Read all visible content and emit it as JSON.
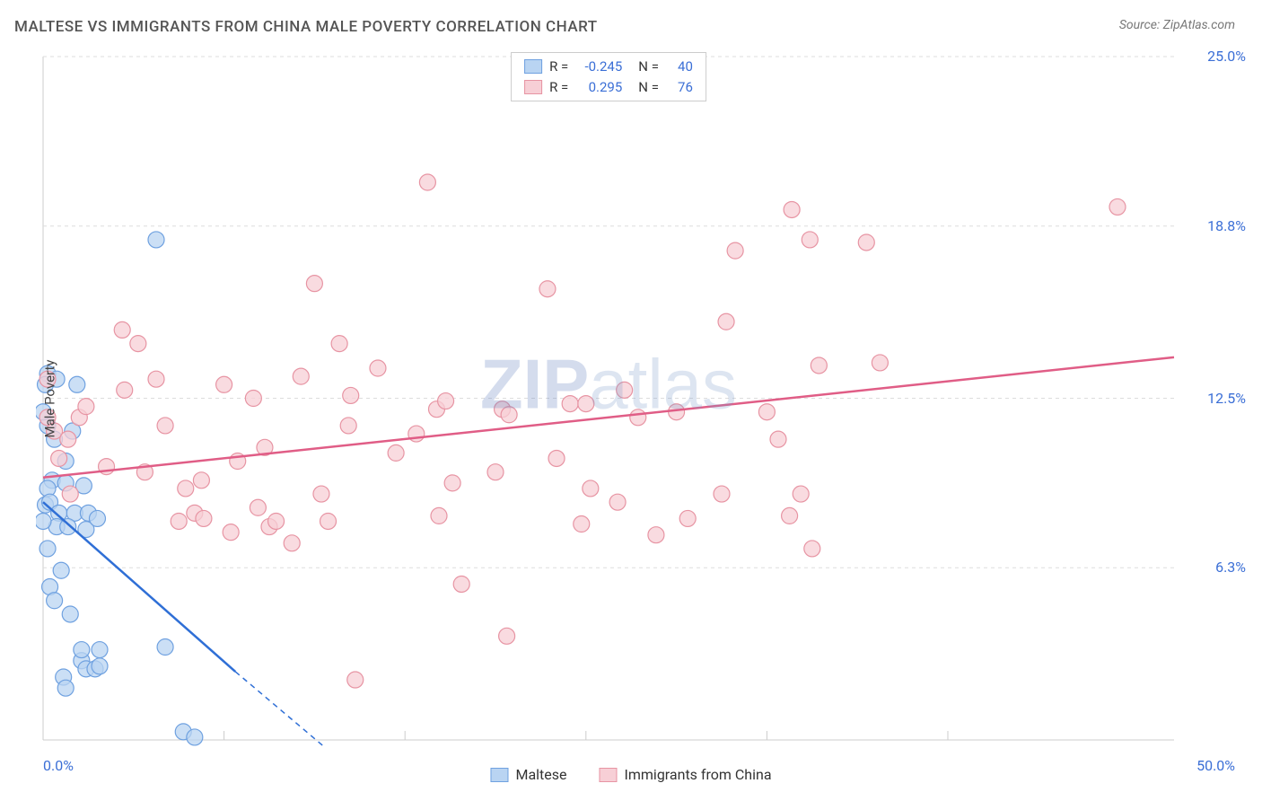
{
  "title": "MALTESE VS IMMIGRANTS FROM CHINA MALE POVERTY CORRELATION CHART",
  "source_prefix": "Source: ",
  "source_name": "ZipAtlas.com",
  "ylabel": "Male Poverty",
  "watermark": {
    "bold": "ZIP",
    "rest": "atlas"
  },
  "chart": {
    "type": "scatter",
    "xlim": [
      0,
      50
    ],
    "ylim": [
      0,
      25
    ],
    "x_ticks_major": [
      0,
      50
    ],
    "x_ticks_minor": [
      8,
      16,
      24,
      32,
      40
    ],
    "y_ticks": [
      6.3,
      12.5,
      18.8,
      25.0
    ],
    "x_tick_labels": [
      "0.0%",
      "50.0%"
    ],
    "y_tick_labels": [
      "6.3%",
      "12.5%",
      "18.8%",
      "25.0%"
    ],
    "tick_label_color": "#3b6fd6",
    "grid_color": "#dddddd",
    "axis_color": "#cccccc",
    "background_color": "#ffffff",
    "marker_radius": 9,
    "marker_stroke_width": 1.2,
    "line_width": 2.5,
    "dash_pattern": "6 5"
  },
  "series": [
    {
      "key": "maltese",
      "label": "Maltese",
      "fill": "#b9d4f2",
      "stroke": "#6fa1e0",
      "swatch_fill": "#b9d4f2",
      "swatch_stroke": "#6fa1e0",
      "R_label": "R =",
      "N_label": "N =",
      "R": "-0.245",
      "N": "40",
      "trend": {
        "solid": [
          [
            0,
            8.7
          ],
          [
            8.5,
            2.5
          ]
        ],
        "dashed": [
          [
            8.5,
            2.5
          ],
          [
            13.5,
            -1
          ]
        ],
        "color": "#2f6fd6"
      },
      "points": [
        [
          0.2,
          13.4
        ],
        [
          0.1,
          13.0
        ],
        [
          0.6,
          13.2
        ],
        [
          1.5,
          13.0
        ],
        [
          0.4,
          9.5
        ],
        [
          0.2,
          9.2
        ],
        [
          0.1,
          8.6
        ],
        [
          0.3,
          8.7
        ],
        [
          1.0,
          9.4
        ],
        [
          1.8,
          9.3
        ],
        [
          0.7,
          8.3
        ],
        [
          1.4,
          8.3
        ],
        [
          2.0,
          8.3
        ],
        [
          0.6,
          7.8
        ],
        [
          1.1,
          7.8
        ],
        [
          1.9,
          7.7
        ],
        [
          2.4,
          8.1
        ],
        [
          0.2,
          7.0
        ],
        [
          0.8,
          6.2
        ],
        [
          0.3,
          5.6
        ],
        [
          0.5,
          5.1
        ],
        [
          1.2,
          4.6
        ],
        [
          1.7,
          2.9
        ],
        [
          1.9,
          2.6
        ],
        [
          2.3,
          2.6
        ],
        [
          2.5,
          3.3
        ],
        [
          2.5,
          2.7
        ],
        [
          0.9,
          2.3
        ],
        [
          1.0,
          1.9
        ],
        [
          1.7,
          3.3
        ],
        [
          5.4,
          3.4
        ],
        [
          5.0,
          18.3
        ],
        [
          6.2,
          0.3
        ],
        [
          6.7,
          0.1
        ],
        [
          1.0,
          10.2
        ],
        [
          0.2,
          11.5
        ],
        [
          0.5,
          11.0
        ],
        [
          1.3,
          11.3
        ],
        [
          0.0,
          12.0
        ],
        [
          0.0,
          8.0
        ]
      ]
    },
    {
      "key": "china",
      "label": "Immigrants from China",
      "fill": "#f7cfd6",
      "stroke": "#e794a3",
      "swatch_fill": "#f7cfd6",
      "swatch_stroke": "#e794a3",
      "R_label": "R =",
      "N_label": "N =",
      "R": "0.295",
      "N": "76",
      "trend": {
        "solid": [
          [
            0,
            9.6
          ],
          [
            50,
            14.0
          ]
        ],
        "dashed": null,
        "color": "#e05d86"
      },
      "points": [
        [
          0.2,
          13.2
        ],
        [
          0.2,
          11.8
        ],
        [
          0.5,
          11.3
        ],
        [
          1.1,
          11.0
        ],
        [
          1.6,
          11.8
        ],
        [
          1.9,
          12.2
        ],
        [
          0.7,
          10.3
        ],
        [
          1.2,
          9.0
        ],
        [
          3.5,
          15.0
        ],
        [
          3.6,
          12.8
        ],
        [
          4.2,
          14.5
        ],
        [
          5.4,
          11.5
        ],
        [
          5.0,
          13.2
        ],
        [
          6.0,
          8.0
        ],
        [
          6.3,
          9.2
        ],
        [
          6.7,
          8.3
        ],
        [
          7.0,
          9.5
        ],
        [
          7.1,
          8.1
        ],
        [
          8.3,
          7.6
        ],
        [
          8.6,
          10.2
        ],
        [
          9.3,
          12.5
        ],
        [
          9.5,
          8.5
        ],
        [
          9.8,
          10.7
        ],
        [
          10.0,
          7.8
        ],
        [
          10.3,
          8.0
        ],
        [
          11.4,
          13.3
        ],
        [
          12.0,
          16.7
        ],
        [
          12.3,
          9.0
        ],
        [
          12.6,
          8.0
        ],
        [
          13.1,
          14.5
        ],
        [
          13.5,
          11.5
        ],
        [
          13.6,
          12.6
        ],
        [
          13.8,
          2.2
        ],
        [
          14.8,
          13.6
        ],
        [
          15.6,
          10.5
        ],
        [
          16.5,
          11.2
        ],
        [
          17.0,
          20.4
        ],
        [
          17.4,
          12.1
        ],
        [
          17.8,
          12.4
        ],
        [
          17.5,
          8.2
        ],
        [
          18.1,
          9.4
        ],
        [
          18.5,
          5.7
        ],
        [
          20.0,
          9.8
        ],
        [
          20.3,
          12.1
        ],
        [
          20.6,
          11.9
        ],
        [
          22.3,
          16.5
        ],
        [
          22.7,
          10.3
        ],
        [
          20.5,
          3.8
        ],
        [
          23.3,
          12.3
        ],
        [
          23.8,
          7.9
        ],
        [
          24.2,
          9.2
        ],
        [
          25.4,
          8.7
        ],
        [
          25.7,
          12.8
        ],
        [
          26.3,
          11.8
        ],
        [
          27.1,
          7.5
        ],
        [
          28.0,
          12.0
        ],
        [
          28.5,
          8.1
        ],
        [
          30.2,
          15.3
        ],
        [
          30.6,
          17.9
        ],
        [
          32.0,
          12.0
        ],
        [
          32.5,
          11.0
        ],
        [
          33.1,
          19.4
        ],
        [
          33.5,
          9.0
        ],
        [
          33.9,
          18.3
        ],
        [
          34.3,
          13.7
        ],
        [
          33.0,
          8.2
        ],
        [
          36.4,
          18.2
        ],
        [
          37.0,
          13.8
        ],
        [
          34.0,
          7.0
        ],
        [
          30.0,
          9.0
        ],
        [
          24.0,
          12.3
        ],
        [
          11.0,
          7.2
        ],
        [
          8.0,
          13.0
        ],
        [
          4.5,
          9.8
        ],
        [
          2.8,
          10.0
        ],
        [
          47.5,
          19.5
        ]
      ]
    }
  ],
  "legend_bottom": [
    {
      "label": "Maltese",
      "fill": "#b9d4f2",
      "stroke": "#6fa1e0"
    },
    {
      "label": "Immigrants from China",
      "fill": "#f7cfd6",
      "stroke": "#e794a3"
    }
  ]
}
